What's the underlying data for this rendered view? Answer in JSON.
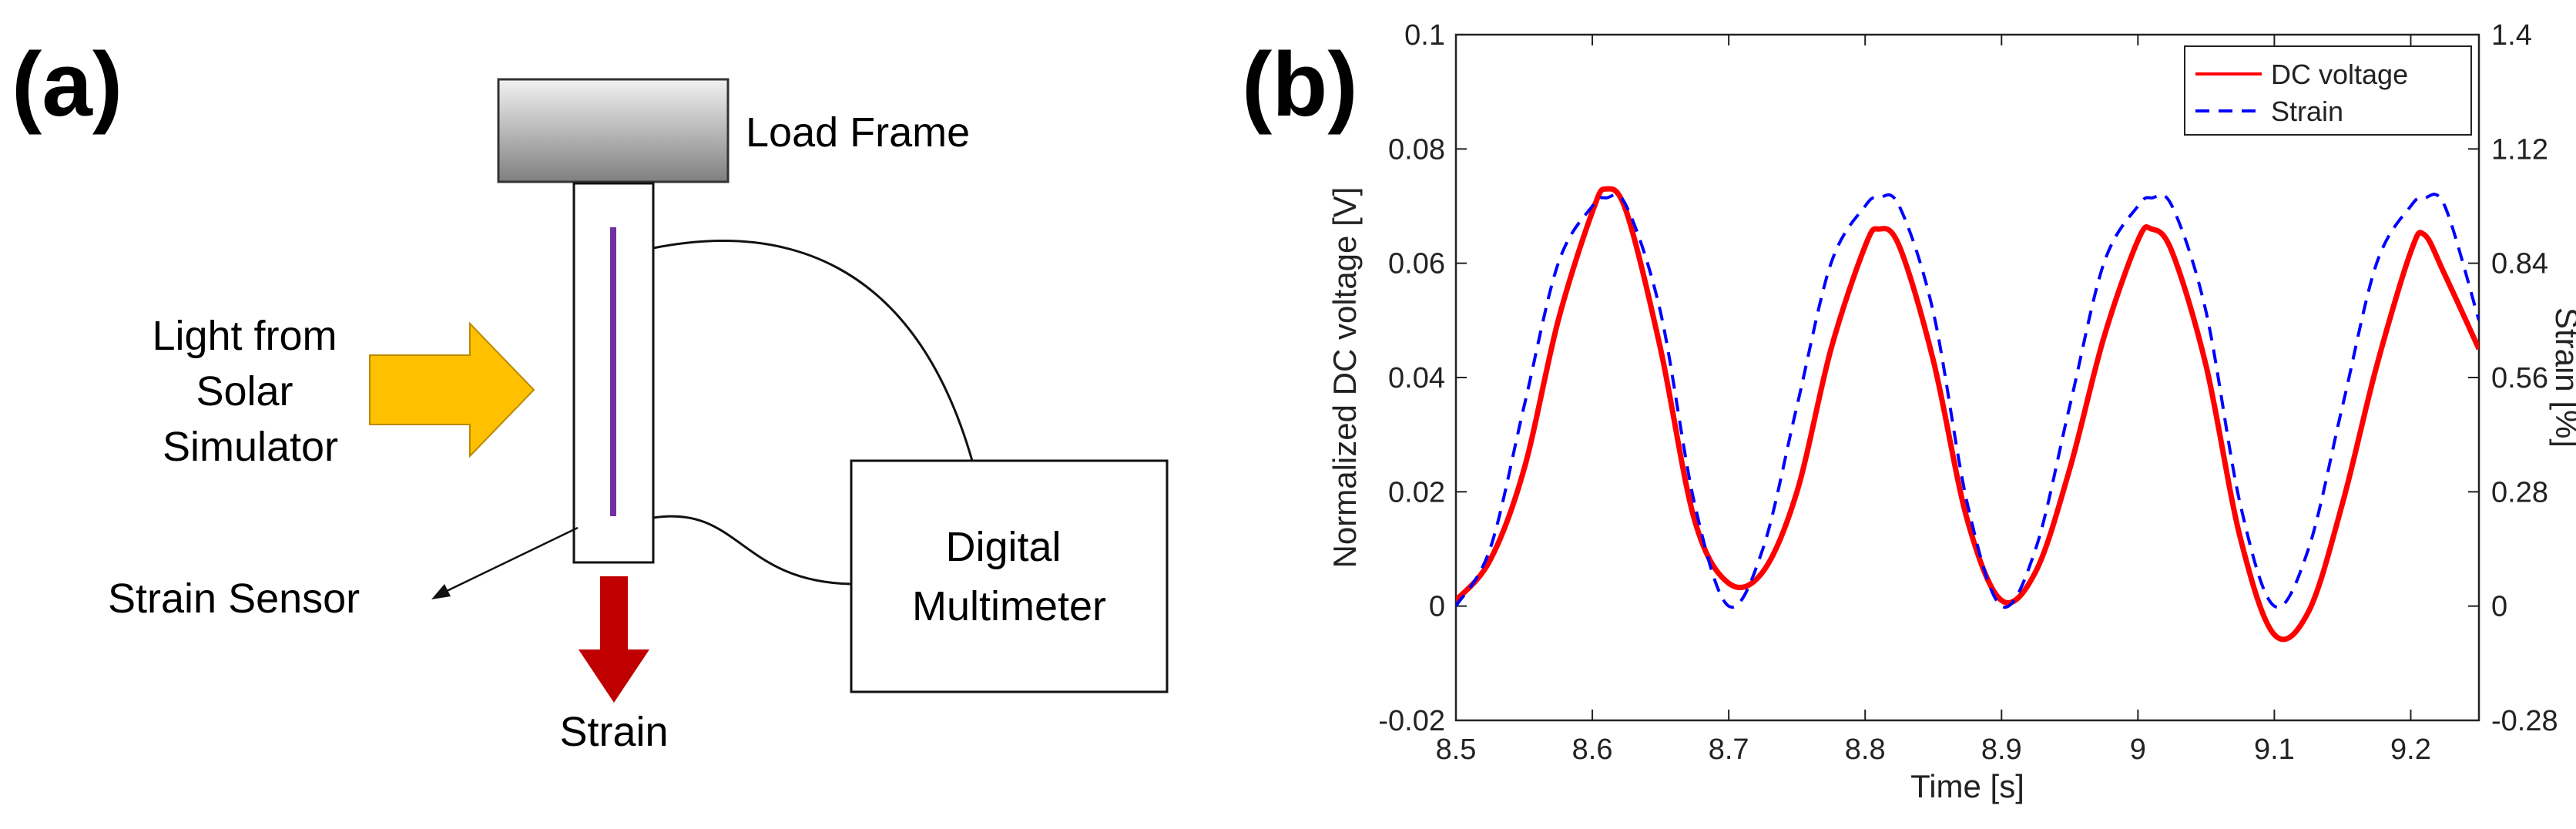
{
  "panel_a": {
    "label": "(a)",
    "load_frame_label": "Load Frame",
    "light_label_lines": [
      "Light from",
      "Solar",
      "Simulator"
    ],
    "sensor_label": "Strain Sensor",
    "multimeter_label_lines": [
      "Digital",
      "Multimeter"
    ],
    "strain_label": "Strain",
    "colors": {
      "light_arrow": "#FFC000",
      "strain_arrow": "#C00000",
      "sensor_line": "#7030A0",
      "load_frame_top": "#F2F2F2",
      "load_frame_bottom": "#7F7F7F"
    }
  },
  "panel_b": {
    "label": "(b)"
  },
  "chart_data": {
    "type": "line",
    "title": "",
    "xlabel": "Time [s]",
    "ylabel": "Normalized DC voltage [V]",
    "y2label": "Strain [%]",
    "xlim": [
      8.5,
      9.25
    ],
    "ylim": [
      -0.02,
      0.1
    ],
    "y2lim": [
      -0.28,
      1.4
    ],
    "xticks": [
      8.5,
      8.6,
      8.7,
      8.8,
      8.9,
      9,
      9.1,
      9.2
    ],
    "xtick_labels": [
      "8.5",
      "8.6",
      "8.7",
      "8.8",
      "8.9",
      "9",
      "9.1",
      "9.2"
    ],
    "yticks": [
      -0.02,
      0,
      0.02,
      0.04,
      0.06,
      0.08,
      0.1
    ],
    "ytick_labels": [
      "-0.02",
      "0",
      "0.02",
      "0.04",
      "0.06",
      "0.08",
      "0.1"
    ],
    "y2ticks": [
      -0.28,
      0,
      0.28,
      0.56,
      0.84,
      1.12,
      1.4
    ],
    "y2tick_labels": [
      "-0.28",
      "0",
      "0.28",
      "0.56",
      "0.84",
      "1.12",
      "1.4"
    ],
    "legend_position": "top-right",
    "series": [
      {
        "name": "DC voltage",
        "axis": "left",
        "color": "#FF0000",
        "style": "solid",
        "x": [
          8.5,
          8.525,
          8.55,
          8.575,
          8.6,
          8.61,
          8.625,
          8.65,
          8.675,
          8.7,
          8.725,
          8.75,
          8.775,
          8.8,
          8.81,
          8.825,
          8.85,
          8.875,
          8.9,
          8.925,
          8.95,
          8.975,
          9.0,
          9.01,
          9.025,
          9.05,
          9.075,
          9.1,
          9.125,
          9.15,
          9.175,
          9.2,
          9.21,
          9.225,
          9.25
        ],
        "y": [
          0.001,
          0.008,
          0.024,
          0.05,
          0.069,
          0.073,
          0.069,
          0.045,
          0.015,
          0.004,
          0.006,
          0.02,
          0.045,
          0.063,
          0.066,
          0.063,
          0.043,
          0.015,
          0.001,
          0.006,
          0.024,
          0.047,
          0.064,
          0.066,
          0.062,
          0.042,
          0.012,
          -0.005,
          -0.001,
          0.018,
          0.042,
          0.062,
          0.065,
          0.058,
          0.045
        ]
      },
      {
        "name": "Strain",
        "axis": "right",
        "color": "#0000FF",
        "style": "dashed",
        "x": [
          8.5,
          8.525,
          8.55,
          8.575,
          8.6,
          8.61,
          8.625,
          8.65,
          8.675,
          8.7,
          8.725,
          8.75,
          8.775,
          8.8,
          8.81,
          8.825,
          8.85,
          8.875,
          8.9,
          8.925,
          8.95,
          8.975,
          9.0,
          9.01,
          9.025,
          9.05,
          9.075,
          9.1,
          9.125,
          9.15,
          9.175,
          9.2,
          9.21,
          9.225,
          9.25
        ],
        "y": [
          0.0,
          0.14,
          0.49,
          0.84,
          0.98,
          1.0,
          0.98,
          0.72,
          0.25,
          0.0,
          0.14,
          0.49,
          0.84,
          0.98,
          1.0,
          0.98,
          0.72,
          0.25,
          0.0,
          0.14,
          0.49,
          0.84,
          0.98,
          1.0,
          0.98,
          0.72,
          0.25,
          0.0,
          0.14,
          0.49,
          0.84,
          0.98,
          1.0,
          0.98,
          0.7
        ]
      }
    ]
  }
}
